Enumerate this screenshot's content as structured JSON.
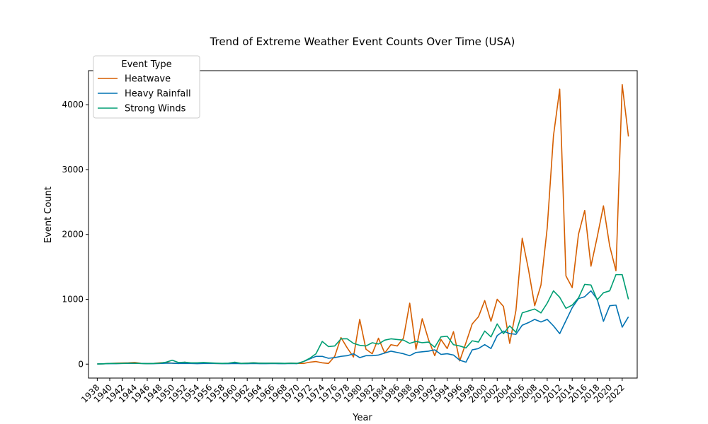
{
  "chart_data": {
    "type": "line",
    "title": "Trend of Extreme Weather Event Counts Over Time (USA)",
    "xlabel": "Year",
    "ylabel": "Event Count",
    "xlim": [
      1936.6,
      2024.4
    ],
    "ylim": [
      -215,
      4525
    ],
    "x_ticks": [
      1938,
      1940,
      1942,
      1944,
      1946,
      1948,
      1950,
      1952,
      1954,
      1956,
      1958,
      1960,
      1962,
      1964,
      1966,
      1968,
      1970,
      1972,
      1974,
      1976,
      1978,
      1980,
      1982,
      1984,
      1986,
      1988,
      1990,
      1992,
      1994,
      1996,
      1998,
      2000,
      2002,
      2004,
      2006,
      2008,
      2010,
      2012,
      2014,
      2016,
      2018,
      2020,
      2022
    ],
    "y_ticks": [
      0,
      1000,
      2000,
      3000,
      4000
    ],
    "grid": false,
    "legend": {
      "title": "Event Type",
      "placement": "top-left"
    },
    "x": [
      1938,
      1939,
      1940,
      1941,
      1942,
      1943,
      1944,
      1945,
      1946,
      1947,
      1948,
      1949,
      1950,
      1951,
      1952,
      1953,
      1954,
      1955,
      1956,
      1957,
      1958,
      1959,
      1960,
      1961,
      1962,
      1963,
      1964,
      1965,
      1966,
      1967,
      1968,
      1969,
      1970,
      1971,
      1972,
      1973,
      1974,
      1975,
      1976,
      1977,
      1978,
      1979,
      1980,
      1981,
      1982,
      1983,
      1984,
      1985,
      1986,
      1987,
      1988,
      1989,
      1990,
      1991,
      1992,
      1993,
      1994,
      1995,
      1996,
      1997,
      1998,
      1999,
      2000,
      2001,
      2002,
      2003,
      2004,
      2005,
      2006,
      2007,
      2008,
      2009,
      2010,
      2011,
      2012,
      2013,
      2014,
      2015,
      2016,
      2017,
      2018,
      2019,
      2020,
      2021,
      2022,
      2023
    ],
    "series": [
      {
        "name": "Heatwave",
        "color": "#d55e00",
        "values": [
          2,
          5,
          10,
          15,
          18,
          20,
          25,
          12,
          8,
          10,
          20,
          25,
          15,
          10,
          30,
          15,
          10,
          20,
          15,
          10,
          10,
          12,
          20,
          10,
          15,
          20,
          15,
          12,
          15,
          12,
          10,
          15,
          12,
          10,
          30,
          40,
          20,
          10,
          120,
          410,
          250,
          110,
          690,
          230,
          160,
          400,
          170,
          300,
          280,
          400,
          940,
          230,
          700,
          380,
          130,
          380,
          240,
          500,
          50,
          330,
          620,
          730,
          980,
          660,
          1000,
          890,
          320,
          830,
          1940,
          1460,
          900,
          1220,
          2100,
          3520,
          4240,
          1360,
          1180,
          2000,
          2370,
          1510,
          1960,
          2440,
          1820,
          1440,
          4310,
          3510
        ]
      },
      {
        "name": "Heavy Rainfall",
        "color": "#0072b2",
        "values": [
          2,
          5,
          8,
          8,
          10,
          12,
          12,
          10,
          8,
          8,
          10,
          15,
          15,
          10,
          12,
          10,
          8,
          10,
          12,
          10,
          8,
          8,
          10,
          8,
          8,
          10,
          8,
          8,
          10,
          8,
          8,
          10,
          8,
          40,
          80,
          120,
          120,
          90,
          100,
          120,
          130,
          160,
          100,
          130,
          130,
          140,
          170,
          200,
          180,
          160,
          130,
          180,
          190,
          200,
          220,
          150,
          160,
          140,
          60,
          30,
          220,
          240,
          300,
          240,
          440,
          510,
          470,
          460,
          600,
          640,
          690,
          650,
          690,
          590,
          470,
          670,
          870,
          1010,
          1040,
          1130,
          1000,
          660,
          900,
          910,
          570,
          730
        ]
      },
      {
        "name": "Strong Winds",
        "color": "#009e73",
        "values": [
          2,
          5,
          10,
          10,
          12,
          15,
          15,
          10,
          8,
          10,
          15,
          30,
          60,
          25,
          30,
          20,
          20,
          25,
          20,
          15,
          12,
          15,
          30,
          12,
          15,
          20,
          15,
          15,
          15,
          15,
          12,
          15,
          12,
          40,
          90,
          160,
          350,
          270,
          280,
          390,
          390,
          320,
          290,
          280,
          330,
          310,
          370,
          390,
          380,
          370,
          320,
          350,
          330,
          340,
          260,
          420,
          430,
          300,
          280,
          250,
          360,
          340,
          510,
          420,
          620,
          470,
          590,
          490,
          790,
          820,
          850,
          790,
          940,
          1130,
          1030,
          860,
          910,
          1020,
          1230,
          1220,
          990,
          1100,
          1130,
          1380,
          1380,
          1000
        ]
      }
    ]
  }
}
